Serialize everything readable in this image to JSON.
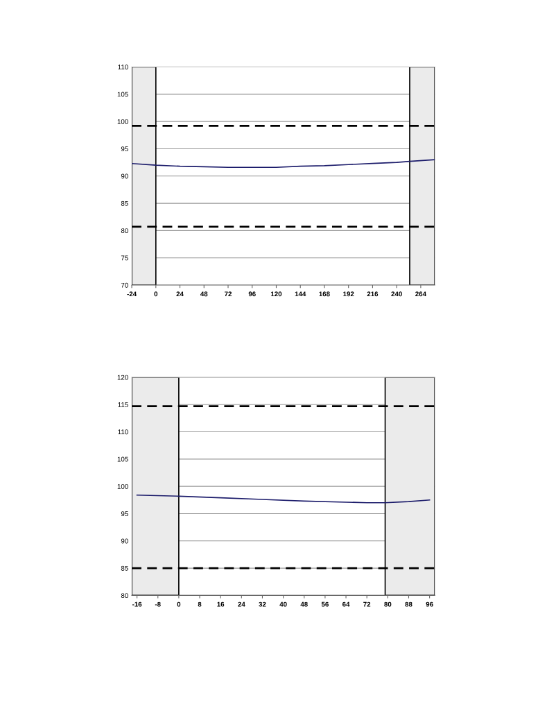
{
  "chart_data": [
    {
      "type": "line",
      "x": [
        -24,
        0,
        24,
        48,
        72,
        96,
        120,
        144,
        168,
        192,
        216,
        240,
        253,
        278
      ],
      "series": [
        {
          "color": "#1c1c6b",
          "values": [
            92.3,
            92.0,
            91.8,
            91.7,
            91.6,
            91.6,
            91.6,
            91.8,
            91.9,
            92.1,
            92.3,
            92.5,
            92.7,
            93.0
          ]
        }
      ],
      "xlim": [
        -24,
        278
      ],
      "xticks": [
        -24,
        0,
        24,
        48,
        72,
        96,
        120,
        144,
        168,
        192,
        216,
        240,
        264
      ],
      "ylim": [
        70,
        110
      ],
      "yticks": [
        70,
        75,
        80,
        85,
        90,
        95,
        100,
        105,
        110
      ],
      "grid": "y",
      "ref_lines": [
        {
          "axis": "y",
          "value": 99.2,
          "color": "#000000",
          "line_style": "dashed"
        },
        {
          "axis": "y",
          "value": 80.7,
          "color": "#000000",
          "line_style": "dashed"
        }
      ],
      "bands": [
        {
          "axis": "x",
          "from": -24,
          "to": 0,
          "color": "#ebebeb"
        },
        {
          "axis": "x",
          "from": 253,
          "to": 278,
          "color": "#ebebeb"
        }
      ]
    },
    {
      "type": "line",
      "x": [
        -16,
        0,
        16,
        32,
        48,
        64,
        72,
        79,
        88,
        96
      ],
      "series": [
        {
          "color": "#1c1c6b",
          "values": [
            98.4,
            98.2,
            97.9,
            97.6,
            97.3,
            97.1,
            97.0,
            97.0,
            97.2,
            97.5
          ]
        }
      ],
      "xlim": [
        -18,
        98
      ],
      "xticks": [
        -16,
        -8,
        0,
        8,
        16,
        24,
        32,
        40,
        48,
        56,
        64,
        72,
        80,
        88,
        96
      ],
      "ylim": [
        80,
        120
      ],
      "yticks": [
        80,
        85,
        90,
        95,
        100,
        105,
        110,
        115,
        120
      ],
      "grid": "y",
      "ref_lines": [
        {
          "axis": "y",
          "value": 114.7,
          "color": "#000000",
          "line_style": "dashed"
        },
        {
          "axis": "y",
          "value": 85.0,
          "color": "#000000",
          "line_style": "dashed"
        }
      ],
      "bands": [
        {
          "axis": "x",
          "from": -18,
          "to": 0,
          "color": "#ebebeb"
        },
        {
          "axis": "x",
          "from": 79,
          "to": 98,
          "color": "#ebebeb"
        }
      ]
    }
  ]
}
